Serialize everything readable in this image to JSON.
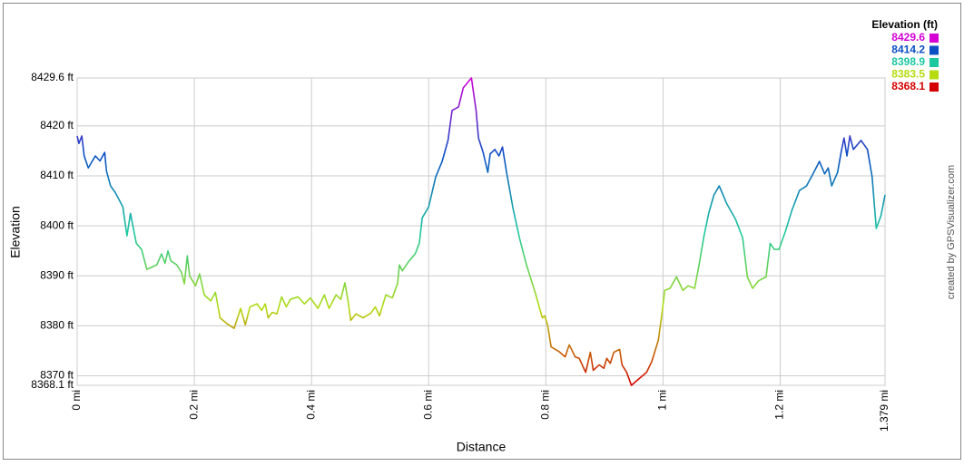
{
  "chart_data": {
    "type": "line",
    "x_label": "Distance",
    "y_label": "Elevation",
    "credit": "created by GPSVisualizer.com",
    "x": [
      0,
      0.003,
      0.008,
      0.012,
      0.019,
      0.031,
      0.039,
      0.047,
      0.05,
      0.057,
      0.065,
      0.078,
      0.085,
      0.091,
      0.101,
      0.11,
      0.119,
      0.136,
      0.144,
      0.15,
      0.155,
      0.16,
      0.17,
      0.178,
      0.183,
      0.188,
      0.192,
      0.202,
      0.209,
      0.217,
      0.228,
      0.236,
      0.244,
      0.256,
      0.268,
      0.279,
      0.287,
      0.295,
      0.307,
      0.315,
      0.321,
      0.326,
      0.333,
      0.341,
      0.349,
      0.357,
      0.364,
      0.377,
      0.388,
      0.398,
      0.411,
      0.422,
      0.43,
      0.442,
      0.45,
      0.457,
      0.462,
      0.467,
      0.476,
      0.488,
      0.501,
      0.509,
      0.516,
      0.527,
      0.538,
      0.547,
      0.55,
      0.555,
      0.566,
      0.577,
      0.584,
      0.589,
      0.6,
      0.612,
      0.623,
      0.633,
      0.64,
      0.651,
      0.659,
      0.673,
      0.681,
      0.685,
      0.693,
      0.701,
      0.705,
      0.713,
      0.72,
      0.726,
      0.733,
      0.744,
      0.755,
      0.767,
      0.783,
      0.794,
      0.798,
      0.803,
      0.809,
      0.822,
      0.833,
      0.84,
      0.85,
      0.857,
      0.868,
      0.876,
      0.881,
      0.891,
      0.899,
      0.904,
      0.91,
      0.916,
      0.926,
      0.93,
      0.938,
      0.946,
      0.958,
      0.972,
      0.981,
      0.992,
      0.997,
      1.003,
      1.012,
      1.023,
      1.034,
      1.043,
      1.054,
      1.062,
      1.07,
      1.078,
      1.087,
      1.096,
      1.109,
      1.124,
      1.136,
      1.144,
      1.153,
      1.163,
      1.176,
      1.183,
      1.19,
      1.198,
      1.209,
      1.22,
      1.233,
      1.245,
      1.256,
      1.267,
      1.276,
      1.282,
      1.288,
      1.298,
      1.304,
      1.309,
      1.314,
      1.319,
      1.325,
      1.338,
      1.349,
      1.357,
      1.364,
      1.372,
      1.379
    ],
    "values": [
      8418,
      8416.5,
      8418,
      8414,
      8411.6,
      8414,
      8413,
      8414.7,
      8411,
      8408,
      8406.7,
      8403.8,
      8398,
      8402.5,
      8396.5,
      8395.3,
      8391.3,
      8392.2,
      8394.4,
      8392.5,
      8395,
      8393,
      8392.2,
      8390.7,
      8388.4,
      8394,
      8390,
      8388,
      8390.4,
      8386.2,
      8385,
      8386.7,
      8381.6,
      8380.4,
      8379.5,
      8383.5,
      8380.2,
      8383.8,
      8384.4,
      8383.1,
      8384.4,
      8381.6,
      8382.7,
      8382.4,
      8385.8,
      8383.8,
      8385.3,
      8385.8,
      8384.4,
      8385.6,
      8383.5,
      8386.2,
      8383.5,
      8386.2,
      8385.3,
      8388.6,
      8385.3,
      8381.1,
      8382.4,
      8381.6,
      8382.5,
      8383.8,
      8382,
      8386.2,
      8385.6,
      8388.5,
      8392.2,
      8391,
      8392.9,
      8394.4,
      8396.5,
      8401.6,
      8403.8,
      8409.8,
      8412.9,
      8417.1,
      8423.1,
      8423.8,
      8427.6,
      8429.6,
      8423.1,
      8417.6,
      8414.7,
      8410.7,
      8414.4,
      8415.3,
      8414,
      8415.8,
      8410.7,
      8403.5,
      8397.6,
      8392.2,
      8386.2,
      8381.6,
      8382,
      8380.2,
      8375.8,
      8374.9,
      8373.8,
      8376.2,
      8373.8,
      8373.5,
      8370.7,
      8374.7,
      8371.1,
      8372.2,
      8371.5,
      8373.5,
      8372.5,
      8374.7,
      8375.3,
      8372.2,
      8370.7,
      8368.1,
      8369.3,
      8370.7,
      8372.9,
      8377.1,
      8381.3,
      8387.1,
      8387.5,
      8389.8,
      8387.1,
      8388,
      8387.5,
      8392.5,
      8398,
      8402.5,
      8406.2,
      8408,
      8404.4,
      8401.3,
      8397.6,
      8389.8,
      8387.5,
      8389,
      8389.8,
      8396.5,
      8395.3,
      8395.3,
      8398.9,
      8403.1,
      8407.1,
      8408,
      8410.4,
      8412.9,
      8410.4,
      8411.6,
      8408,
      8410.7,
      8414.7,
      8417.6,
      8414,
      8418,
      8415.3,
      8417.1,
      8415.3,
      8409.8,
      8399.5,
      8402,
      8406.2
    ],
    "xlim": [
      0,
      1.379
    ],
    "ylim": [
      8368.1,
      8429.6
    ],
    "xticks": [
      {
        "value": 0,
        "label": "0 mi"
      },
      {
        "value": 0.2,
        "label": "0.2 mi"
      },
      {
        "value": 0.4,
        "label": "0.4 mi"
      },
      {
        "value": 0.6,
        "label": "0.6 mi"
      },
      {
        "value": 0.8,
        "label": "0.8 mi"
      },
      {
        "value": 1,
        "label": "1 mi"
      },
      {
        "value": 1.2,
        "label": "1.2 mi"
      },
      {
        "value": 1.379,
        "label": "1.379 mi"
      }
    ],
    "yticks": [
      {
        "value": 8429.6,
        "label": "8429.6 ft"
      },
      {
        "value": 8420,
        "label": "8420 ft"
      },
      {
        "value": 8410,
        "label": "8410 ft"
      },
      {
        "value": 8400,
        "label": "8400 ft"
      },
      {
        "value": 8390,
        "label": "8390 ft"
      },
      {
        "value": 8380,
        "label": "8380 ft"
      },
      {
        "value": 8370,
        "label": "8370 ft"
      },
      {
        "value": 8368.1,
        "label": "8368.1 ft"
      }
    ],
    "grid": true,
    "color_scale": {
      "title": "Elevation (ft)",
      "position": "top-right",
      "stops": [
        {
          "value": 8429.6,
          "color": "#d400d4"
        },
        {
          "value": 8414.2,
          "color": "#0a4fc4"
        },
        {
          "value": 8398.9,
          "color": "#1cc8a0"
        },
        {
          "value": 8383.5,
          "color": "#b4dc10"
        },
        {
          "value": 8368.1,
          "color": "#d40000"
        }
      ]
    }
  }
}
